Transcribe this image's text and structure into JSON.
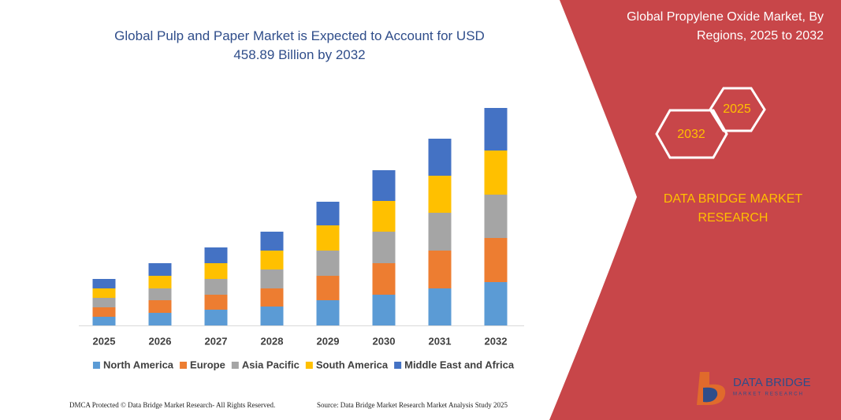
{
  "chart_data": {
    "type": "bar",
    "stacked": true,
    "title": "Global Pulp and Paper Market is Expected to Account for USD 458.89 Billion by 2032",
    "categories": [
      "2025",
      "2026",
      "2027",
      "2028",
      "2029",
      "2030",
      "2031",
      "2032"
    ],
    "series": [
      {
        "name": "North America",
        "color": "#5b9bd5",
        "values": [
          11,
          16,
          20,
          24,
          32,
          39,
          47,
          55
        ]
      },
      {
        "name": "Europe",
        "color": "#ed7d31",
        "values": [
          12,
          16,
          19,
          23,
          31,
          40,
          48,
          56
        ]
      },
      {
        "name": "Asia Pacific",
        "color": "#a5a5a5",
        "values": [
          12,
          15,
          20,
          24,
          32,
          40,
          48,
          55
        ]
      },
      {
        "name": "South America",
        "color": "#ffc000",
        "values": [
          12,
          16,
          20,
          24,
          32,
          39,
          47,
          56
        ]
      },
      {
        "name": "Middle East and Africa",
        "color": "#4472c4",
        "values": [
          12,
          16,
          20,
          24,
          30,
          39,
          47,
          54
        ]
      }
    ],
    "ylim": [
      0,
      290
    ],
    "legend": "bottom"
  },
  "panel": {
    "title": "Global Propylene Oxide Market, By Regions, 2025 to 2032",
    "hexagons": [
      "2025",
      "2032"
    ],
    "brand": "DATA BRIDGE MARKET RESEARCH",
    "color": "#c84649"
  },
  "logo": {
    "name": "DATA BRIDGE",
    "tagline": "MARKET RESEARCH"
  },
  "footer": {
    "left": "DMCA Protected © Data Bridge Market Research-  All Rights Reserved.",
    "right": "Source: Data Bridge Market Research  Market Analysis Study 2025"
  }
}
